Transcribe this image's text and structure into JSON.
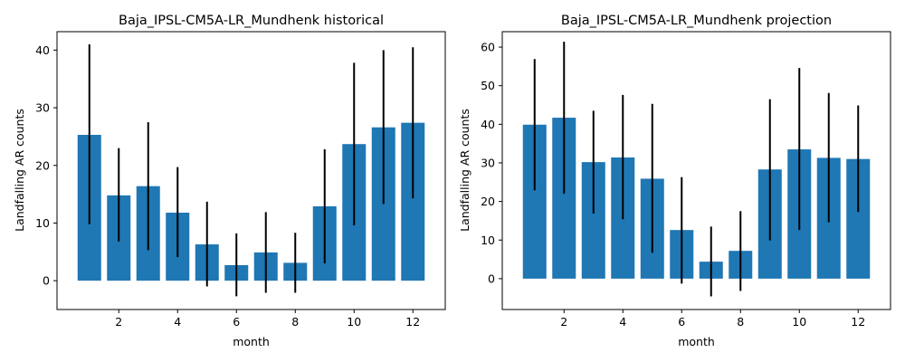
{
  "chart_data": [
    {
      "type": "bar",
      "title": "Baja_IPSL-CM5A-LR_Mundhenk historical",
      "xlabel": "month",
      "ylabel": "Landfalling AR counts",
      "x": [
        1,
        2,
        3,
        4,
        5,
        6,
        7,
        8,
        9,
        10,
        11,
        12
      ],
      "values": [
        25.3,
        14.8,
        16.4,
        11.8,
        6.3,
        2.7,
        4.9,
        3.1,
        12.9,
        23.7,
        26.6,
        27.4
      ],
      "error_low": [
        9.8,
        6.8,
        5.3,
        4.1,
        -1.0,
        -2.7,
        -2.1,
        -2.1,
        3.0,
        9.6,
        13.3,
        14.3
      ],
      "error_high": [
        41.0,
        23.0,
        27.5,
        19.7,
        13.7,
        8.2,
        11.9,
        8.3,
        22.8,
        37.8,
        40.0,
        40.5
      ],
      "xticks": [
        2,
        4,
        6,
        8,
        10,
        12
      ],
      "yticks": [
        0,
        10,
        20,
        30,
        40
      ],
      "xlim": [
        -0.1,
        13.1
      ],
      "ylim": [
        -5.0,
        43.2
      ],
      "grid": false,
      "color": "#1f77b4",
      "error_color": "#000000"
    },
    {
      "type": "bar",
      "title": "Baja_IPSL-CM5A-LR_Mundhenk projection",
      "xlabel": "month",
      "ylabel": "Landfalling AR counts",
      "x": [
        1,
        2,
        3,
        4,
        5,
        6,
        7,
        8,
        9,
        10,
        11,
        12
      ],
      "values": [
        39.9,
        41.7,
        30.2,
        31.4,
        25.9,
        12.6,
        4.4,
        7.2,
        28.3,
        33.5,
        31.3,
        31.0
      ],
      "error_low": [
        22.9,
        22.0,
        16.9,
        15.4,
        6.7,
        -1.3,
        -4.6,
        -3.2,
        9.9,
        12.6,
        14.6,
        17.3
      ],
      "error_high": [
        56.9,
        61.4,
        43.5,
        47.6,
        45.3,
        26.3,
        13.5,
        17.5,
        46.5,
        54.6,
        48.1,
        44.9
      ],
      "xticks": [
        2,
        4,
        6,
        8,
        10,
        12
      ],
      "yticks": [
        0,
        10,
        20,
        30,
        40,
        50,
        60
      ],
      "xlim": [
        -0.1,
        13.1
      ],
      "ylim": [
        -8.0,
        64.0
      ],
      "grid": false,
      "color": "#1f77b4",
      "error_color": "#000000"
    }
  ]
}
